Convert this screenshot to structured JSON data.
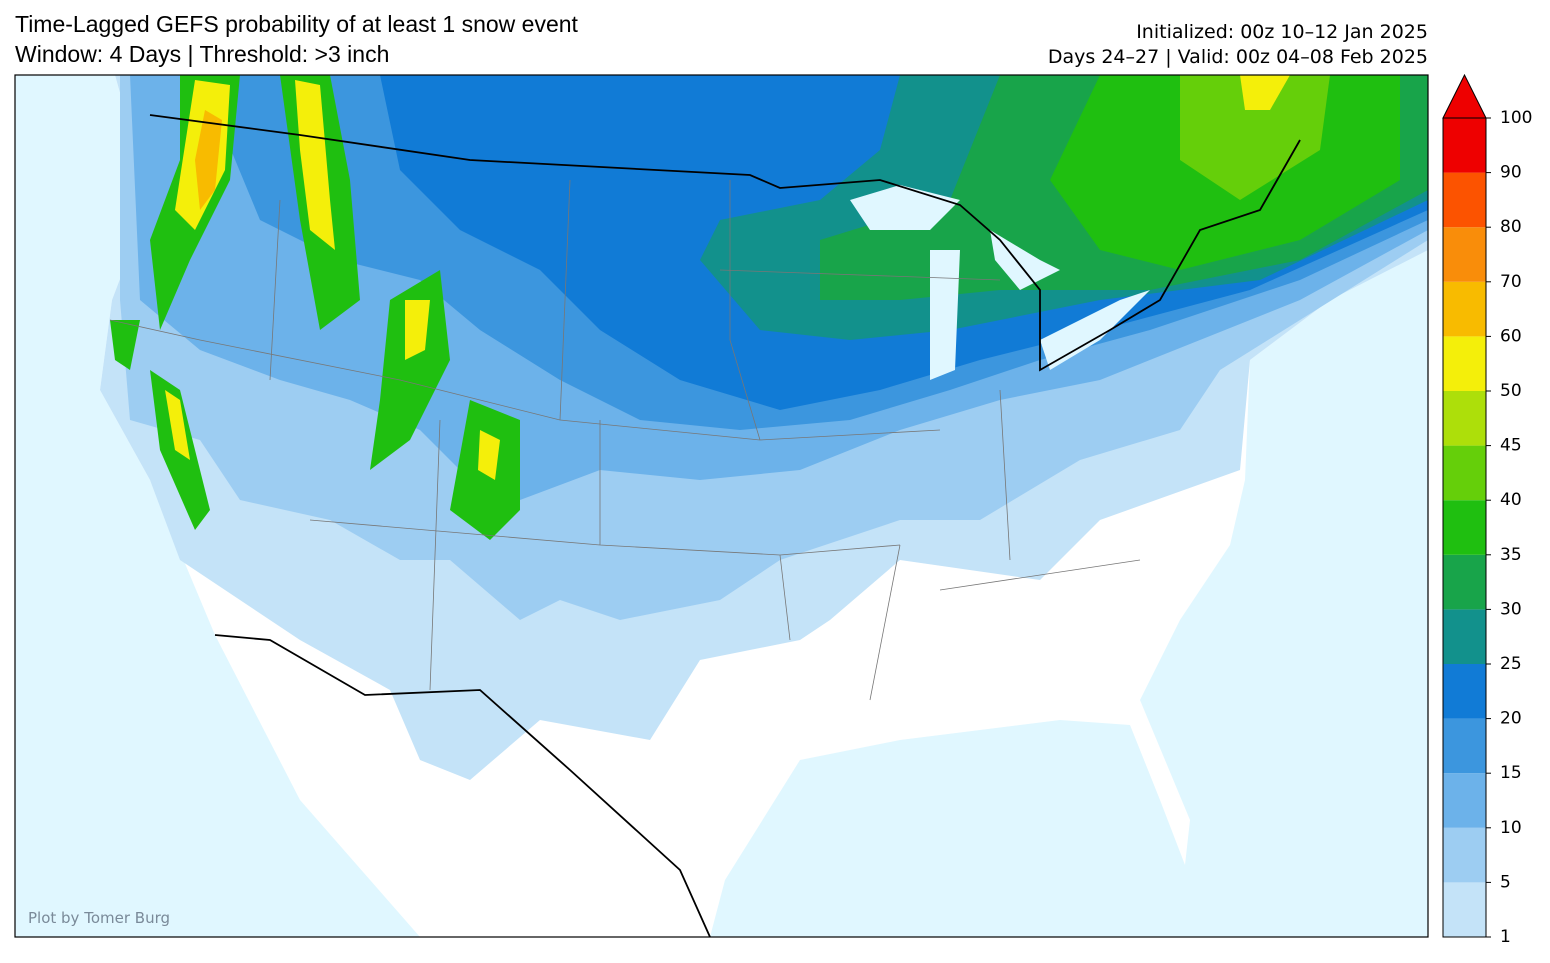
{
  "header": {
    "title": "Time-Lagged GEFS probability of at least 1 snow event",
    "subtitle": "Window: 4 Days | Threshold: >3 inch",
    "initialized": "Initialized: 00z 10–12 Jan 2025",
    "valid": "Days 24–27 | Valid: 00z 04–08 Feb 2025"
  },
  "credit": "Plot by Tomer Burg",
  "colorbar": {
    "levels": [
      1,
      5,
      10,
      15,
      20,
      25,
      30,
      35,
      40,
      45,
      50,
      60,
      70,
      80,
      90,
      100
    ],
    "colors": [
      "#c4e3f8",
      "#9dcdf2",
      "#6cb2ea",
      "#3c96de",
      "#117bd6",
      "#12918c",
      "#18a44a",
      "#1fbf10",
      "#65cf0a",
      "#addf0a",
      "#f4ef0a",
      "#f8bb00",
      "#f98d0a",
      "#fc5300",
      "#ee0000"
    ],
    "extend_color": "#ee0000"
  }
}
